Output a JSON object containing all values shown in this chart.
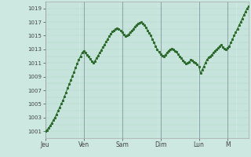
{
  "bg_color": "#cce8e0",
  "line_color": "#2d6a2d",
  "marker_color": "#2d6a2d",
  "grid_color_minor": "#b0d8cc",
  "grid_color_major": "#9ac8bc",
  "vline_color": "#556677",
  "ylim": [
    1000,
    1020
  ],
  "yticks": [
    1001,
    1003,
    1005,
    1007,
    1009,
    1011,
    1013,
    1015,
    1017,
    1019
  ],
  "ytick_labels": [
    "1001",
    "1003",
    "1005",
    "1007",
    "1009",
    "1011",
    "1013",
    "1015",
    "1017",
    "1019"
  ],
  "day_labels": [
    "Jeu",
    "Ven",
    "Sam",
    "Dim",
    "Lun",
    "M"
  ],
  "day_positions": [
    0,
    24,
    48,
    72,
    96,
    114
  ],
  "values": [
    1001.0,
    1001.2,
    1001.5,
    1001.8,
    1002.2,
    1002.6,
    1003.0,
    1003.5,
    1004.0,
    1004.5,
    1005.0,
    1005.5,
    1006.1,
    1006.7,
    1007.3,
    1007.9,
    1008.5,
    1009.1,
    1009.7,
    1010.3,
    1010.9,
    1011.5,
    1012.0,
    1012.5,
    1012.8,
    1012.5,
    1012.2,
    1011.9,
    1011.6,
    1011.3,
    1011.0,
    1011.3,
    1011.7,
    1012.1,
    1012.5,
    1012.9,
    1013.3,
    1013.7,
    1014.1,
    1014.5,
    1014.9,
    1015.3,
    1015.6,
    1015.8,
    1016.0,
    1016.1,
    1016.0,
    1015.8,
    1015.5,
    1015.2,
    1014.9,
    1015.0,
    1015.2,
    1015.5,
    1015.7,
    1016.0,
    1016.3,
    1016.6,
    1016.8,
    1016.9,
    1017.0,
    1016.8,
    1016.5,
    1016.2,
    1015.8,
    1015.4,
    1015.0,
    1014.5,
    1014.0,
    1013.5,
    1013.0,
    1012.6,
    1012.3,
    1012.1,
    1012.0,
    1012.2,
    1012.5,
    1012.8,
    1013.0,
    1013.1,
    1013.0,
    1012.8,
    1012.6,
    1012.3,
    1012.0,
    1011.7,
    1011.4,
    1011.1,
    1010.9,
    1011.0,
    1011.2,
    1011.5,
    1011.4,
    1011.2,
    1011.0,
    1010.8,
    1010.5,
    1009.5,
    1010.0,
    1010.5,
    1011.0,
    1011.5,
    1011.8,
    1012.0,
    1012.2,
    1012.5,
    1012.8,
    1013.0,
    1013.2,
    1013.5,
    1013.7,
    1013.3,
    1013.1,
    1013.0,
    1013.2,
    1013.5,
    1014.0,
    1014.5,
    1015.0,
    1015.5,
    1016.0,
    1016.5,
    1017.0,
    1017.5,
    1018.0,
    1018.5,
    1019.0,
    1019.3
  ]
}
